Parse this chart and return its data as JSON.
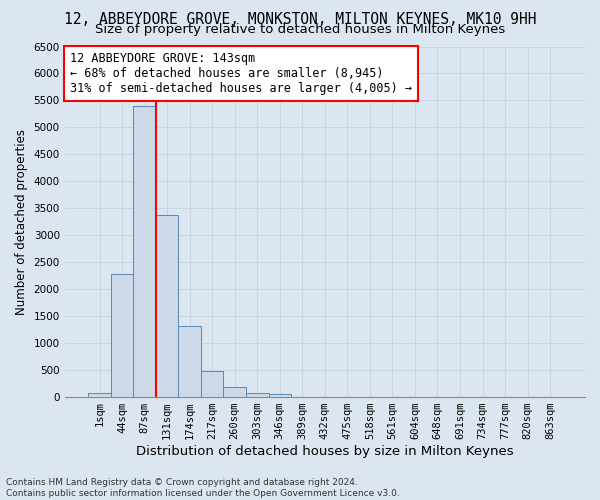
{
  "title": "12, ABBEYDORE GROVE, MONKSTON, MILTON KEYNES, MK10 9HH",
  "subtitle": "Size of property relative to detached houses in Milton Keynes",
  "xlabel": "Distribution of detached houses by size in Milton Keynes",
  "ylabel": "Number of detached properties",
  "footer_line1": "Contains HM Land Registry data © Crown copyright and database right 2024.",
  "footer_line2": "Contains public sector information licensed under the Open Government Licence v3.0.",
  "bin_labels": [
    "1sqm",
    "44sqm",
    "87sqm",
    "131sqm",
    "174sqm",
    "217sqm",
    "260sqm",
    "303sqm",
    "346sqm",
    "389sqm",
    "432sqm",
    "475sqm",
    "518sqm",
    "561sqm",
    "604sqm",
    "648sqm",
    "691sqm",
    "734sqm",
    "777sqm",
    "820sqm",
    "863sqm"
  ],
  "bar_values": [
    70,
    2270,
    5400,
    3380,
    1310,
    480,
    180,
    75,
    55,
    0,
    0,
    0,
    0,
    0,
    0,
    0,
    0,
    0,
    0,
    0,
    0
  ],
  "bar_color": "#cdd9e8",
  "bar_edge_color": "#5a88b5",
  "red_line_x": 2.5,
  "annotation_line1": "12 ABBEYDORE GROVE: 143sqm",
  "annotation_line2": "← 68% of detached houses are smaller (8,945)",
  "annotation_line3": "31% of semi-detached houses are larger (4,005) →",
  "annotation_box_color": "white",
  "annotation_box_edge_color": "red",
  "ylim": [
    0,
    6500
  ],
  "yticks": [
    0,
    500,
    1000,
    1500,
    2000,
    2500,
    3000,
    3500,
    4000,
    4500,
    5000,
    5500,
    6000,
    6500
  ],
  "grid_color": "#c8d4e0",
  "background_color": "#dce6f0",
  "title_fontsize": 10.5,
  "subtitle_fontsize": 9.5,
  "xlabel_fontsize": 9.5,
  "ylabel_fontsize": 8.5,
  "tick_fontsize": 7.5,
  "annotation_fontsize": 8.5,
  "footer_fontsize": 6.5
}
